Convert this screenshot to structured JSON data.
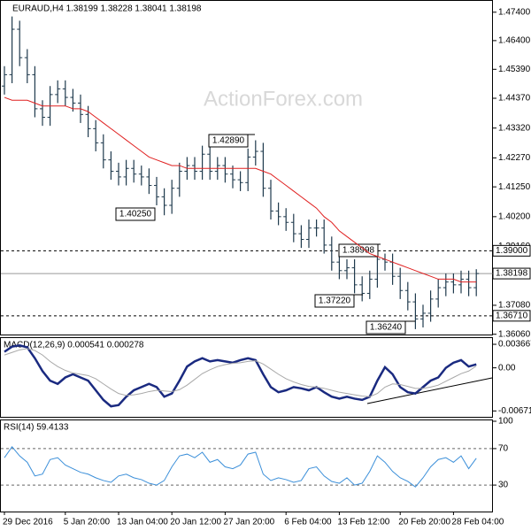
{
  "chart_data": [
    {
      "type": "ohlc",
      "title": "EURAUD,H4  1.38199 1.38228 1.38041 1.38198",
      "watermark": "ActionForex.com",
      "ylim": [
        1.3605,
        1.4783
      ],
      "yticks": [
        {
          "value": 1.474,
          "label": "1.47400"
        },
        {
          "value": 1.464,
          "label": "1.46400"
        },
        {
          "value": 1.4539,
          "label": "1.45390"
        },
        {
          "value": 1.4437,
          "label": "1.44370"
        },
        {
          "value": 1.4332,
          "label": "1.43320"
        },
        {
          "value": 1.4227,
          "label": "1.42270"
        },
        {
          "value": 1.4125,
          "label": "1.41250"
        },
        {
          "value": 1.402,
          "label": "1.40200"
        },
        {
          "value": 1.3916,
          "label": "1.39160"
        },
        {
          "value": 1.3809,
          "label": "1.38090"
        },
        {
          "value": 1.3708,
          "label": "1.37080"
        },
        {
          "value": 1.3606,
          "label": "1.36060"
        }
      ],
      "color": "#1f3a4d",
      "open": [
        1.448,
        1.452,
        1.468,
        1.458,
        1.452,
        1.44,
        1.437,
        1.445,
        1.447,
        1.444,
        1.442,
        1.438,
        1.433,
        1.428,
        1.422,
        1.418,
        1.416,
        1.419,
        1.417,
        1.416,
        1.413,
        1.409,
        1.406,
        1.412,
        1.418,
        1.42,
        1.418,
        1.424,
        1.418,
        1.42,
        1.417,
        1.415,
        1.414,
        1.423,
        1.425,
        1.412,
        1.404,
        1.402,
        1.4,
        1.396,
        1.394,
        1.398,
        1.398,
        1.392,
        1.386,
        1.383,
        1.384,
        1.378,
        1.375,
        1.38,
        1.387,
        1.386,
        1.381,
        1.376,
        1.372,
        1.366,
        1.368,
        1.373,
        1.377,
        1.379,
        1.378,
        1.38,
        1.377
      ],
      "high": [
        1.455,
        1.4725,
        1.471,
        1.461,
        1.455,
        1.443,
        1.448,
        1.45,
        1.45,
        1.447,
        1.445,
        1.441,
        1.436,
        1.431,
        1.425,
        1.421,
        1.422,
        1.422,
        1.42,
        1.419,
        1.416,
        1.412,
        1.415,
        1.421,
        1.423,
        1.423,
        1.427,
        1.427,
        1.423,
        1.423,
        1.42,
        1.418,
        1.426,
        1.4289,
        1.428,
        1.415,
        1.407,
        1.405,
        1.403,
        1.399,
        1.401,
        1.401,
        1.401,
        1.395,
        1.389,
        1.387,
        1.387,
        1.381,
        1.383,
        1.38998,
        1.389,
        1.389,
        1.384,
        1.379,
        1.375,
        1.371,
        1.376,
        1.38,
        1.382,
        1.382,
        1.383,
        1.383,
        1.3835
      ],
      "low": [
        1.445,
        1.449,
        1.455,
        1.449,
        1.437,
        1.434,
        1.434,
        1.442,
        1.441,
        1.439,
        1.435,
        1.43,
        1.425,
        1.419,
        1.415,
        1.413,
        1.413,
        1.414,
        1.413,
        1.41,
        1.406,
        1.4025,
        1.403,
        1.409,
        1.415,
        1.415,
        1.415,
        1.415,
        1.415,
        1.414,
        1.412,
        1.411,
        1.411,
        1.42,
        1.409,
        1.401,
        1.399,
        1.397,
        1.393,
        1.391,
        1.391,
        1.395,
        1.389,
        1.383,
        1.38,
        1.38,
        1.375,
        1.3722,
        1.373,
        1.377,
        1.383,
        1.378,
        1.373,
        1.369,
        1.3624,
        1.363,
        1.365,
        1.37,
        1.374,
        1.375,
        1.375,
        1.374,
        1.374
      ],
      "close": [
        1.452,
        1.468,
        1.458,
        1.452,
        1.44,
        1.437,
        1.445,
        1.447,
        1.444,
        1.442,
        1.438,
        1.433,
        1.428,
        1.422,
        1.418,
        1.416,
        1.419,
        1.417,
        1.416,
        1.413,
        1.409,
        1.406,
        1.412,
        1.418,
        1.42,
        1.418,
        1.424,
        1.418,
        1.42,
        1.417,
        1.415,
        1.414,
        1.423,
        1.425,
        1.412,
        1.404,
        1.402,
        1.4,
        1.396,
        1.394,
        1.398,
        1.398,
        1.392,
        1.386,
        1.383,
        1.384,
        1.378,
        1.375,
        1.38,
        1.387,
        1.386,
        1.381,
        1.376,
        1.372,
        1.366,
        1.368,
        1.373,
        1.377,
        1.379,
        1.378,
        1.38,
        1.377,
        1.38198
      ],
      "series": [
        {
          "color": "#e02020",
          "values": [
            1.444,
            1.443,
            1.443,
            1.443,
            1.442,
            1.441,
            1.441,
            1.441,
            1.441,
            1.44,
            1.44,
            1.439,
            1.437,
            1.435,
            1.433,
            1.431,
            1.429,
            1.427,
            1.425,
            1.423,
            1.422,
            1.421,
            1.42,
            1.42,
            1.419,
            1.419,
            1.419,
            1.419,
            1.419,
            1.419,
            1.419,
            1.419,
            1.419,
            1.419,
            1.418,
            1.417,
            1.415,
            1.413,
            1.411,
            1.409,
            1.407,
            1.405,
            1.402,
            1.4,
            1.397,
            1.395,
            1.393,
            1.391,
            1.389,
            1.388,
            1.387,
            1.386,
            1.385,
            1.384,
            1.383,
            1.382,
            1.381,
            1.38,
            1.38,
            1.38,
            1.379,
            1.379,
            1.379
          ]
        }
      ],
      "levels": [
        {
          "value": 1.39,
          "label": "1.39000",
          "style": "dashed"
        },
        {
          "value": 1.38198,
          "label": "1.38198",
          "style": "solid"
        },
        {
          "value": 1.3671,
          "label": "1.36710",
          "style": "dashed"
        }
      ],
      "annotations": [
        {
          "value": 1.4289,
          "label": "1.42890"
        },
        {
          "value": 1.4025,
          "label": "1.40250"
        },
        {
          "value": 1.38998,
          "label": "1.38998"
        },
        {
          "value": 1.3722,
          "label": "1.37220"
        },
        {
          "value": 1.3624,
          "label": "1.36240"
        }
      ]
    },
    {
      "type": "line",
      "title": "MACD(12,26,9) 0.000541 0.000278",
      "ylim": [
        -0.0075,
        0.0045
      ],
      "yticks": [
        0.003667,
        {
          "value": 0,
          "label": "0.00"
        },
        -0.006719
      ],
      "series": [
        {
          "color": "#1a2a80",
          "values": [
            0.0025,
            0.0033,
            0.0035,
            0.0032,
            0.0015,
            -0.0005,
            -0.002,
            -0.0025,
            -0.0015,
            -0.001,
            -0.0015,
            -0.002,
            -0.0035,
            -0.005,
            -0.006,
            -0.0058,
            -0.0045,
            -0.0035,
            -0.003,
            -0.0025,
            -0.003,
            -0.0045,
            -0.004,
            -0.002,
            0.0002,
            0.001,
            0.0015,
            0.001,
            0.0012,
            0.001,
            0.0008,
            0.0012,
            0.0015,
            0.0012,
            -0.001,
            -0.003,
            -0.0038,
            -0.0035,
            -0.003,
            -0.0032,
            -0.0035,
            -0.003,
            -0.0038,
            -0.0045,
            -0.0048,
            -0.0045,
            -0.0048,
            -0.005,
            -0.0045,
            -0.002,
            0.0001,
            -0.001,
            -0.003,
            -0.0038,
            -0.004,
            -0.003,
            -0.002,
            -0.0015,
            0.0,
            0.0008,
            0.0012,
            0.0002,
            0.000541
          ]
        },
        {
          "color": "#a8a8a8",
          "values": [
            0.002,
            0.0024,
            0.0028,
            0.003,
            0.0027,
            0.002,
            0.001,
            0.0002,
            -0.0004,
            -0.0008,
            -0.001,
            -0.0012,
            -0.0017,
            -0.0025,
            -0.0033,
            -0.004,
            -0.0043,
            -0.0042,
            -0.004,
            -0.0037,
            -0.0035,
            -0.0036,
            -0.0037,
            -0.0034,
            -0.0027,
            -0.0018,
            -0.0009,
            -0.0003,
            0.0002,
            0.0005,
            0.0007,
            0.0008,
            0.001,
            0.0011,
            0.0006,
            -0.0002,
            -0.001,
            -0.0017,
            -0.0022,
            -0.0026,
            -0.0029,
            -0.003,
            -0.0032,
            -0.0035,
            -0.0038,
            -0.004,
            -0.0042,
            -0.0044,
            -0.0045,
            -0.004,
            -0.003,
            -0.0025,
            -0.0026,
            -0.0029,
            -0.0032,
            -0.0032,
            -0.003,
            -0.0027,
            -0.0021,
            -0.0015,
            -0.0009,
            -0.0005,
            0.000278
          ]
        }
      ]
    },
    {
      "type": "line",
      "title": "RSI(14) 59.4133",
      "ylim": [
        0,
        100
      ],
      "yticks": [
        100,
        70,
        30
      ],
      "dashed": [
        70,
        30
      ],
      "categories": [
        "29 Dec 2016",
        null,
        null,
        null,
        null,
        null,
        null,
        null,
        "5 Jan 20:00",
        null,
        null,
        null,
        null,
        null,
        null,
        "13 Jan 04:00",
        null,
        null,
        null,
        null,
        null,
        null,
        "20 Jan 12:00",
        null,
        null,
        null,
        null,
        null,
        null,
        "27 Jan 20:00",
        null,
        null,
        null,
        null,
        null,
        null,
        null,
        "6 Feb 04:00",
        null,
        null,
        null,
        null,
        null,
        null,
        "13 Feb 12:00",
        null,
        null,
        null,
        null,
        null,
        null,
        null,
        "20 Feb 20:00",
        null,
        null,
        null,
        null,
        null,
        null,
        "28 Feb 04:00",
        null,
        null,
        null
      ],
      "series": [
        {
          "color": "#3b8fd9",
          "values": [
            60,
            72,
            62,
            55,
            40,
            42,
            58,
            60,
            52,
            48,
            44,
            42,
            38,
            35,
            33,
            40,
            42,
            38,
            36,
            32,
            30,
            35,
            50,
            62,
            64,
            60,
            66,
            55,
            58,
            50,
            48,
            52,
            64,
            66,
            42,
            35,
            38,
            36,
            33,
            35,
            48,
            50,
            40,
            34,
            32,
            38,
            30,
            32,
            45,
            62,
            55,
            45,
            38,
            34,
            28,
            38,
            50,
            58,
            60,
            55,
            62,
            48,
            59.4133
          ]
        }
      ]
    }
  ]
}
